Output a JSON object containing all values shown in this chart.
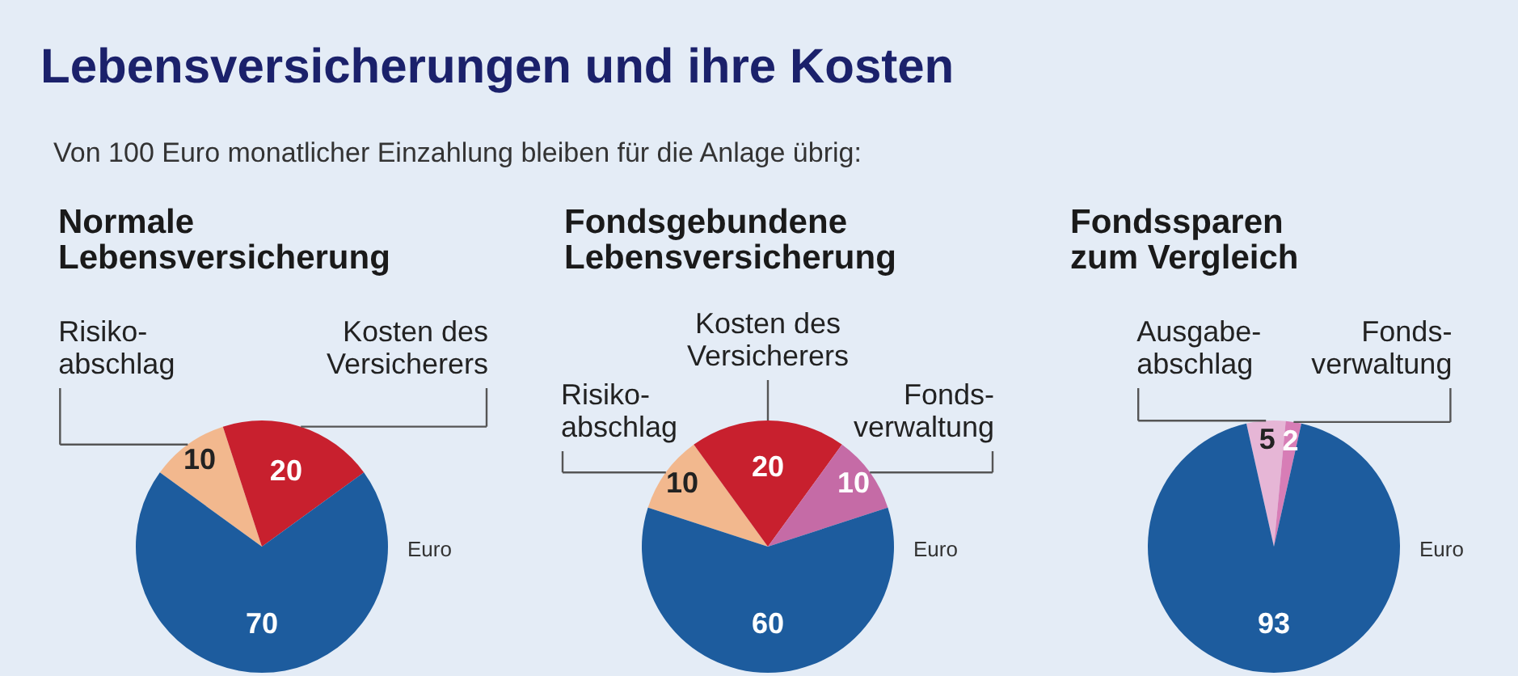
{
  "chart_data": [
    {
      "type": "other",
      "title": "Lebensversicherungen und ihre Kosten",
      "subtitle": "Von 100 Euro monatlicher Einzahlung bleiben für die Anlage übrig:"
    },
    {
      "type": "pie",
      "title": "Normale\nLebensversicherung",
      "categories": [
        "Risiko-\nabschlag",
        "Kosten des\nVersicherers",
        null
      ],
      "values": [
        10,
        20,
        70
      ],
      "colors": [
        "#f2b88e",
        "#c8202e",
        "#1d5c9e"
      ],
      "data_labels": true,
      "annotations": [
        "Euro"
      ]
    },
    {
      "type": "pie",
      "title": "Fondsgebundene\nLebensversicherung",
      "categories": [
        "Risiko-\nabschlag",
        "Kosten des\nVersicherers",
        "Fonds-\nverwaltung",
        null
      ],
      "values": [
        10,
        20,
        10,
        60
      ],
      "colors": [
        "#f2b88e",
        "#c8202e",
        "#c56ba6",
        "#1d5c9e"
      ],
      "data_labels": true,
      "annotations": [
        "Euro"
      ]
    },
    {
      "type": "pie",
      "title": "Fondssparen\nzum Vergleich",
      "categories": [
        "Ausgabe-\nabschlag",
        "Fonds-\nverwaltung",
        null
      ],
      "values": [
        5,
        2,
        93
      ],
      "colors": [
        "#e6b6d6",
        "#d77db6",
        "#1d5c9e"
      ],
      "data_labels": true,
      "annotations": [
        "Euro"
      ]
    }
  ]
}
